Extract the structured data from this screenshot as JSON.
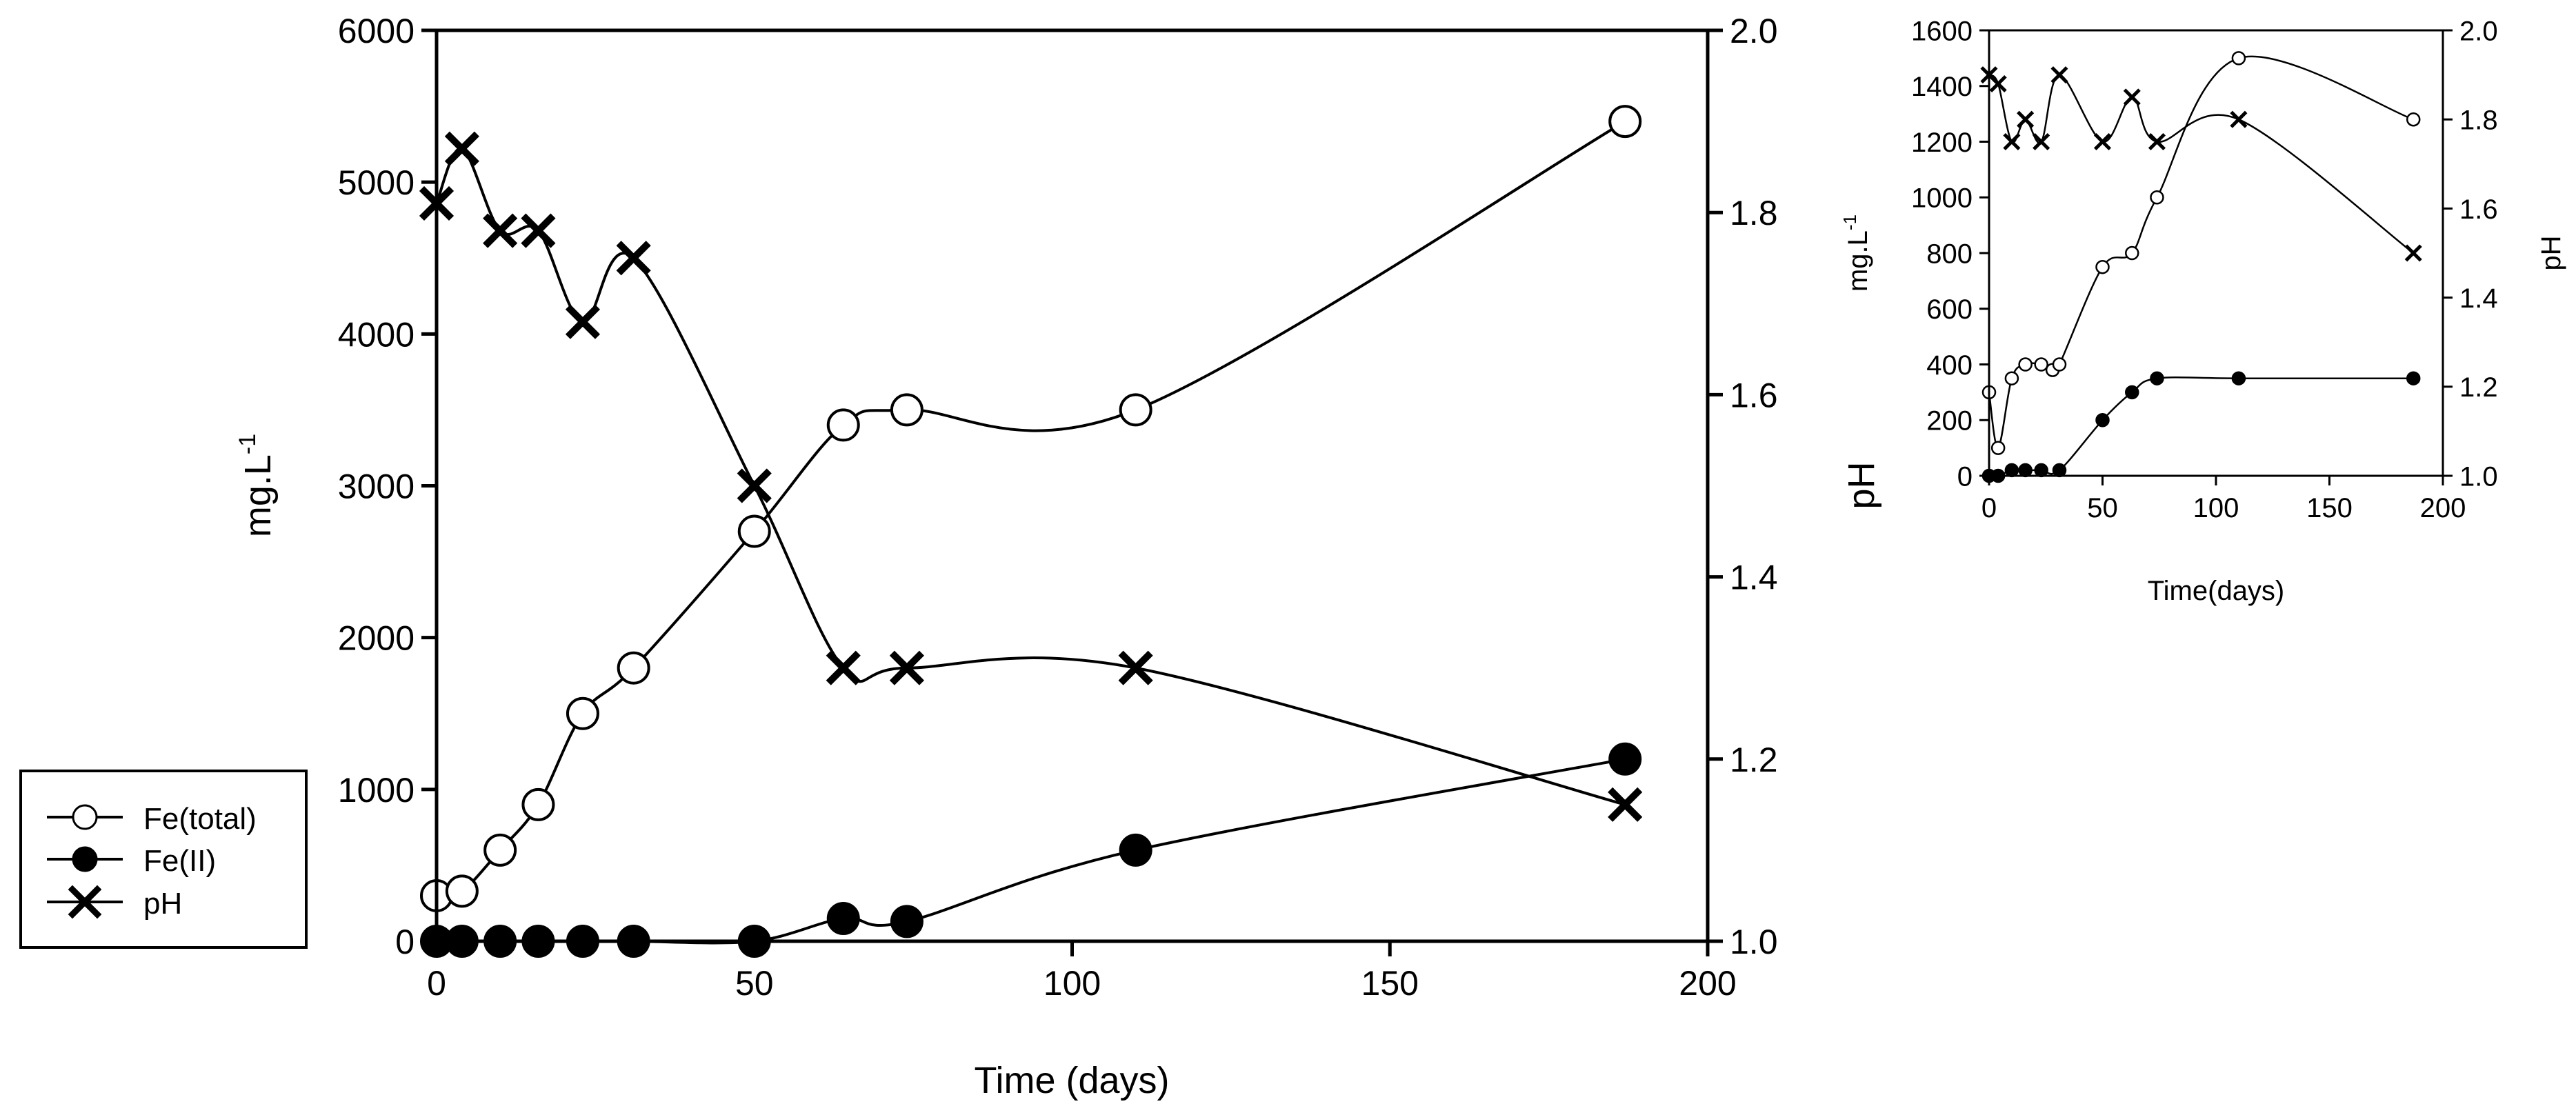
{
  "chart_data": [
    {
      "id": "main",
      "type": "line",
      "title": "",
      "xlabel": "Time (days)",
      "ylabel_left": "mg.L",
      "ylabel_left_sup": "-1",
      "ylabel_right": "pH",
      "xlim": [
        0,
        200
      ],
      "ylim_left": [
        0,
        6000
      ],
      "ylim_right": [
        1.0,
        2.0
      ],
      "x_ticks": [
        "0",
        "50",
        "100",
        "150",
        "200"
      ],
      "y_left_ticks": [
        "0",
        "1000",
        "2000",
        "3000",
        "4000",
        "5000",
        "6000"
      ],
      "y_right_ticks": [
        "1.0",
        "1.2",
        "1.4",
        "1.6",
        "1.8",
        "2.0"
      ],
      "grid": false,
      "legend": {
        "position": "bottom-left",
        "entries": [
          {
            "label": "Fe(total)",
            "marker": "open-circle"
          },
          {
            "label": "Fe(II)",
            "marker": "filled-circle"
          },
          {
            "label": "pH",
            "marker": "cross"
          }
        ]
      },
      "series": [
        {
          "name": "Fe(total)",
          "axis": "left",
          "marker": "open-circle",
          "x": [
            0,
            4,
            10,
            16,
            23,
            31,
            50,
            64,
            74,
            110,
            187
          ],
          "values": [
            300,
            330,
            600,
            900,
            1500,
            1800,
            2700,
            3400,
            3500,
            3500,
            5400
          ]
        },
        {
          "name": "Fe(II)",
          "axis": "left",
          "marker": "filled-circle",
          "x": [
            0,
            4,
            10,
            16,
            23,
            31,
            50,
            64,
            74,
            110,
            187
          ],
          "values": [
            0,
            0,
            0,
            0,
            0,
            0,
            0,
            150,
            130,
            600,
            1200
          ]
        },
        {
          "name": "pH",
          "axis": "right",
          "marker": "cross",
          "x": [
            0,
            4,
            10,
            16,
            23,
            31,
            50,
            64,
            74,
            110,
            187
          ],
          "values": [
            1.81,
            1.87,
            1.78,
            1.78,
            1.68,
            1.75,
            1.5,
            1.3,
            1.3,
            1.3,
            1.15
          ]
        }
      ]
    },
    {
      "id": "inset",
      "type": "line",
      "title": "",
      "xlabel": "Time(days)",
      "ylabel_left": "mg.L",
      "ylabel_left_sup": "-1",
      "ylabel_right": "pH",
      "xlim": [
        0,
        200
      ],
      "ylim_left": [
        0,
        1600
      ],
      "ylim_right": [
        1.0,
        2.0
      ],
      "x_ticks": [
        "0",
        "50",
        "100",
        "150",
        "200"
      ],
      "y_left_ticks": [
        "0",
        "200",
        "400",
        "600",
        "800",
        "1000",
        "1200",
        "1400",
        "1600"
      ],
      "y_right_ticks": [
        "1.0",
        "1.2",
        "1.4",
        "1.6",
        "1.8",
        "2.0"
      ],
      "grid": false,
      "series": [
        {
          "name": "Fe(total)",
          "axis": "left",
          "marker": "open-circle",
          "x": [
            0,
            4,
            10,
            16,
            23,
            28,
            31,
            50,
            63,
            74,
            110,
            187
          ],
          "values": [
            300,
            100,
            350,
            400,
            400,
            380,
            400,
            750,
            800,
            1000,
            1500,
            1280
          ]
        },
        {
          "name": "Fe(II)",
          "axis": "left",
          "marker": "filled-circle",
          "x": [
            0,
            4,
            10,
            16,
            23,
            31,
            50,
            63,
            74,
            110,
            187
          ],
          "values": [
            0,
            0,
            20,
            20,
            20,
            20,
            200,
            300,
            350,
            350,
            350
          ]
        },
        {
          "name": "pH",
          "axis": "right",
          "marker": "cross",
          "x": [
            0,
            4,
            10,
            16,
            23,
            31,
            50,
            63,
            74,
            110,
            187
          ],
          "values": [
            1.9,
            1.88,
            1.75,
            1.8,
            1.75,
            1.9,
            1.75,
            1.85,
            1.75,
            1.8,
            1.5
          ]
        }
      ]
    }
  ]
}
